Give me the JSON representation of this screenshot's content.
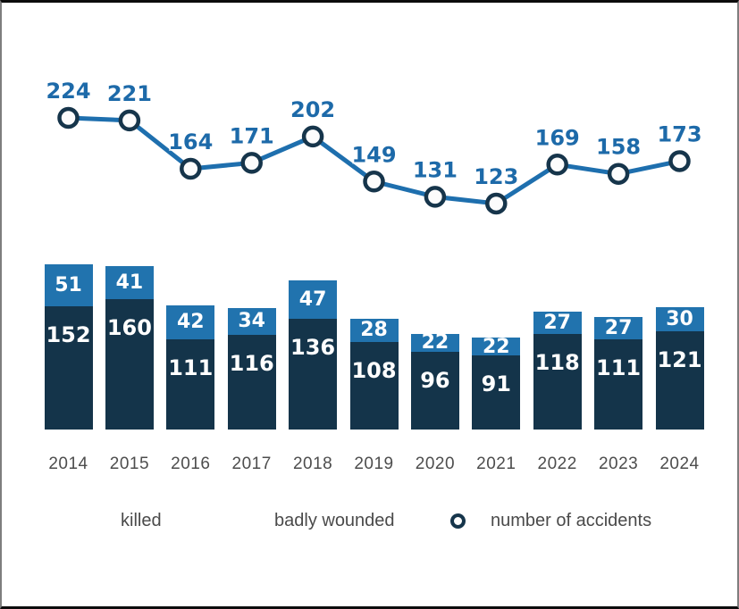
{
  "chart_data": {
    "type": "combo",
    "subtype": "stacked-bar-with-line",
    "title": "",
    "categories": [
      "2014",
      "2015",
      "2016",
      "2017",
      "2018",
      "2019",
      "2020",
      "2021",
      "2022",
      "2023",
      "2024"
    ],
    "series": [
      {
        "name": "killed",
        "type": "bar",
        "stacked": true,
        "color": "#14344a",
        "values": [
          152,
          160,
          111,
          116,
          136,
          108,
          96,
          91,
          118,
          111,
          121
        ]
      },
      {
        "name": "badly wounded",
        "type": "bar",
        "stacked": true,
        "color": "#2173ae",
        "values": [
          51,
          41,
          42,
          34,
          47,
          28,
          22,
          22,
          27,
          27,
          30
        ]
      },
      {
        "name": "number of accidents",
        "type": "line",
        "marker": "open-circle",
        "color": "#1e6fae",
        "values": [
          224,
          221,
          164,
          171,
          202,
          149,
          131,
          123,
          169,
          158,
          173
        ]
      }
    ],
    "data_labels": true,
    "grid": false,
    "axes_visible": false,
    "legend_position": "bottom"
  },
  "colors": {
    "killed": "#14344a",
    "badly_wounded": "#2173ae",
    "line": "#1e6fae",
    "line_label": "#1d6aa9",
    "marker_ring": "#16354b",
    "marker_fill": "#fcfcfc",
    "bar_label": "#ffffff",
    "year_label": "#4d4d4d",
    "legend_text": "#4a4a4a",
    "background": "#ffffff",
    "frame_border": "#0c0c0c"
  }
}
